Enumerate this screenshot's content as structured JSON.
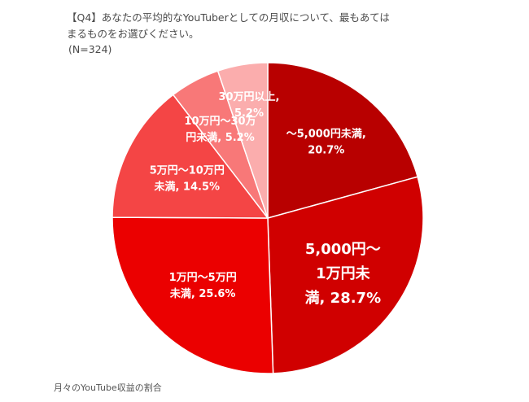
{
  "question": {
    "line1": "【Q4】あなたの平均的なYouTuberとしての月収について、最もあては",
    "line2": "まるものをお選びください。",
    "sample": "(N=324)"
  },
  "caption": "月々のYouTube収益の割合",
  "chart_data": {
    "type": "pie",
    "title": "",
    "slices": [
      {
        "label_lines": [
          "〜5,000円未満,",
          "20.7%"
        ],
        "value": 20.7,
        "color": "#b80000"
      },
      {
        "label_lines": [
          "5,000円〜",
          "1万円未",
          "満, 28.7%"
        ],
        "value": 28.7,
        "color": "#d00000"
      },
      {
        "label_lines": [
          "1万円〜5万円",
          "未満, 25.6%"
        ],
        "value": 25.6,
        "color": "#eb0000"
      },
      {
        "label_lines": [
          "5万円〜10万円",
          "未満, 14.5%"
        ],
        "value": 14.5,
        "color": "#f44545"
      },
      {
        "label_lines": [
          "10万円〜30万",
          "円未満, 5.2%"
        ],
        "value": 5.2,
        "color": "#f87878"
      },
      {
        "label_lines": [
          "30万円以上,",
          "5.2%"
        ],
        "value": 5.2,
        "color": "#fbadad"
      }
    ]
  }
}
